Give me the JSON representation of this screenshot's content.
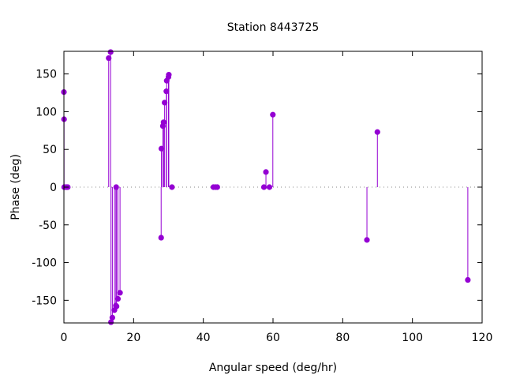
{
  "chart_data": {
    "type": "scatter",
    "style": "impulses-with-points",
    "title": "Station 8443725",
    "xlabel": "Angular speed (deg/hr)",
    "ylabel": "Phase (deg)",
    "xlim": [
      0,
      120
    ],
    "ylim": [
      -180,
      180
    ],
    "xticks": [
      0,
      20,
      40,
      60,
      80,
      100,
      120
    ],
    "yticks": [
      -150,
      -100,
      -50,
      0,
      50,
      100,
      150
    ],
    "grid": false,
    "zero_line": true,
    "color": "#9400d3",
    "series": [
      {
        "points": [
          {
            "x": 0.0,
            "y": 126
          },
          {
            "x": 0.04,
            "y": 90
          },
          {
            "x": 0.08,
            "y": 0
          },
          {
            "x": 0.5,
            "y": 0
          },
          {
            "x": 0.8,
            "y": 0
          },
          {
            "x": 1.1,
            "y": 0
          },
          {
            "x": 12.85,
            "y": 171
          },
          {
            "x": 13.4,
            "y": 179
          },
          {
            "x": 13.5,
            "y": -179
          },
          {
            "x": 13.9,
            "y": -173
          },
          {
            "x": 14.5,
            "y": -163
          },
          {
            "x": 14.9,
            "y": -157
          },
          {
            "x": 15.0,
            "y": 0
          },
          {
            "x": 15.1,
            "y": -158
          },
          {
            "x": 15.5,
            "y": -148
          },
          {
            "x": 16.1,
            "y": -140
          },
          {
            "x": 27.9,
            "y": -67
          },
          {
            "x": 27.97,
            "y": 51
          },
          {
            "x": 28.4,
            "y": 81
          },
          {
            "x": 28.6,
            "y": 86
          },
          {
            "x": 28.9,
            "y": 112
          },
          {
            "x": 29.4,
            "y": 127
          },
          {
            "x": 29.5,
            "y": 141
          },
          {
            "x": 30.0,
            "y": 146
          },
          {
            "x": 30.1,
            "y": 149
          },
          {
            "x": 31.0,
            "y": 0
          },
          {
            "x": 42.9,
            "y": 0
          },
          {
            "x": 43.5,
            "y": 0
          },
          {
            "x": 44.0,
            "y": 0
          },
          {
            "x": 57.4,
            "y": 0
          },
          {
            "x": 57.97,
            "y": 20
          },
          {
            "x": 58.98,
            "y": 0
          },
          {
            "x": 59.95,
            "y": 96
          },
          {
            "x": 86.95,
            "y": -70
          },
          {
            "x": 89.95,
            "y": 73
          },
          {
            "x": 115.9,
            "y": -123
          }
        ]
      }
    ]
  }
}
